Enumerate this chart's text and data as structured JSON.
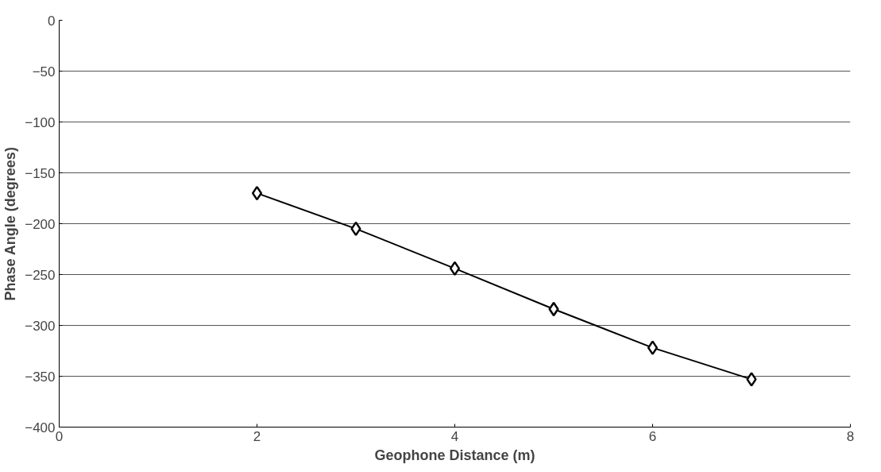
{
  "chart_data": {
    "type": "line",
    "xlabel": "Geophone Distance (m)",
    "ylabel": "Phase Angle (degrees)",
    "x": [
      2,
      3,
      4,
      5,
      6,
      7
    ],
    "series": [
      {
        "color": "#000000",
        "values": [
          -170,
          -205,
          -244,
          -284,
          -322,
          -353
        ]
      }
    ],
    "xlim": [
      0,
      8
    ],
    "xticks": [
      0,
      2,
      4,
      6,
      8
    ],
    "ylim": [
      -400,
      0
    ],
    "yticks": [
      -400,
      -350,
      -300,
      -250,
      -200,
      -150,
      -100,
      -50,
      0
    ],
    "grid": "y",
    "marker": "diamond",
    "line_style": "solid"
  }
}
